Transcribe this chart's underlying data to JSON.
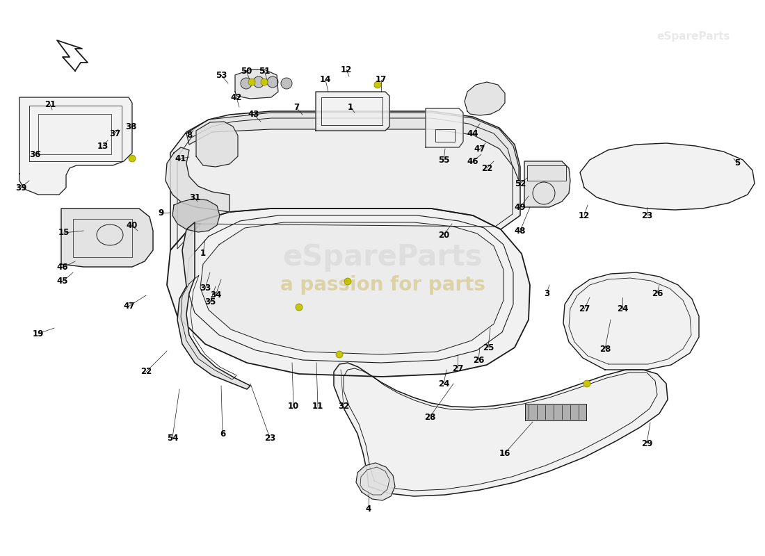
{
  "bg_color": "#ffffff",
  "line_color": "#1a1a1a",
  "fill_light": "#f0f0f0",
  "fill_medium": "#e0e0e0",
  "fill_dark": "#c8c8c8",
  "watermark_text": "a passion for parts",
  "watermark_color": "#b8960a",
  "watermark_alpha": 0.3,
  "watermark2_text": "eSpareParts",
  "watermark2_color": "#aaaaaa",
  "watermark2_alpha": 0.2,
  "font_size": 8.5,
  "lw": 0.9
}
